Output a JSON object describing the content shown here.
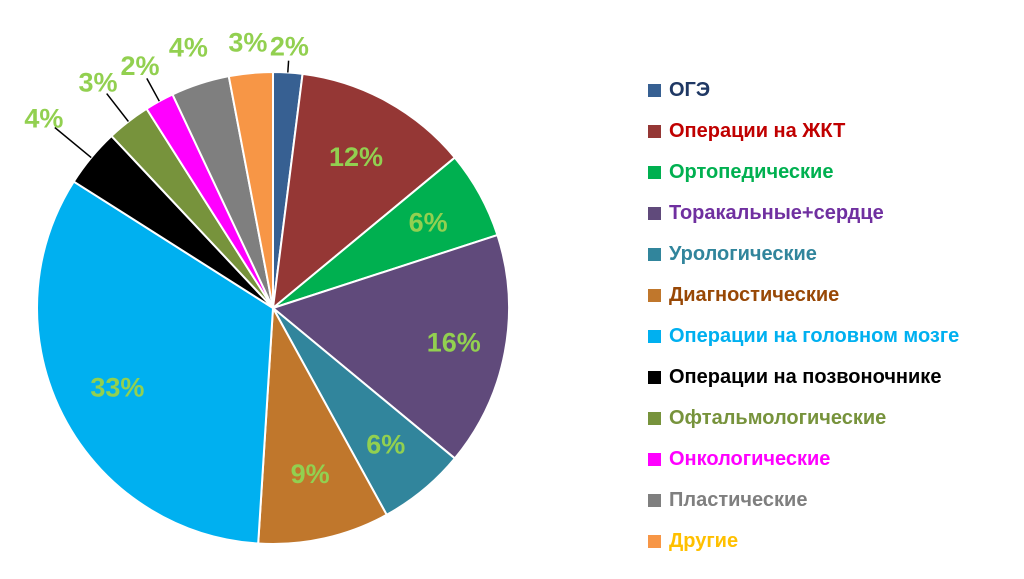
{
  "chart_data": {
    "type": "pie",
    "title": "",
    "legend_position": "right",
    "start_angle_deg": 0,
    "direction": "clockwise",
    "label_color": "#92d050",
    "slices": [
      {
        "name": "ОГЭ",
        "value": 2,
        "label": "2%",
        "color": "#376092",
        "legend_text_color": "#1f3864"
      },
      {
        "name": "Операции на ЖКТ",
        "value": 12,
        "label": "12%",
        "color": "#953735",
        "legend_text_color": "#c00000"
      },
      {
        "name": "Ортопедические",
        "value": 6,
        "label": "6%",
        "color": "#00b050",
        "legend_text_color": "#00b050"
      },
      {
        "name": "Торакальные+сердце",
        "value": 16,
        "label": "16%",
        "color": "#604a7b",
        "legend_text_color": "#7030a0"
      },
      {
        "name": "Урологические",
        "value": 6,
        "label": "6%",
        "color": "#31859c",
        "legend_text_color": "#31859c"
      },
      {
        "name": "Диагностические",
        "value": 9,
        "label": "9%",
        "color": "#c0772c",
        "legend_text_color": "#984806"
      },
      {
        "name": "Операции на головном мозге",
        "value": 33,
        "label": "33%",
        "color": "#00b0f0",
        "legend_text_color": "#00b0f0"
      },
      {
        "name": "Операции на позвоночнике",
        "value": 4,
        "label": "4%",
        "color": "#000000",
        "legend_text_color": "#000000"
      },
      {
        "name": "Офтальмологические",
        "value": 3,
        "label": "3%",
        "color": "#77933c",
        "legend_text_color": "#77933c"
      },
      {
        "name": "Онкологические",
        "value": 2,
        "label": "2%",
        "color": "#ff00ff",
        "legend_text_color": "#ff00ff"
      },
      {
        "name": "Пластические",
        "value": 4,
        "label": "4%",
        "color": "#7f7f7f",
        "legend_text_color": "#7f7f7f"
      },
      {
        "name": "Другие",
        "value": 3,
        "label": "3%",
        "color": "#f79646",
        "legend_text_color": "#ffc000"
      }
    ]
  }
}
